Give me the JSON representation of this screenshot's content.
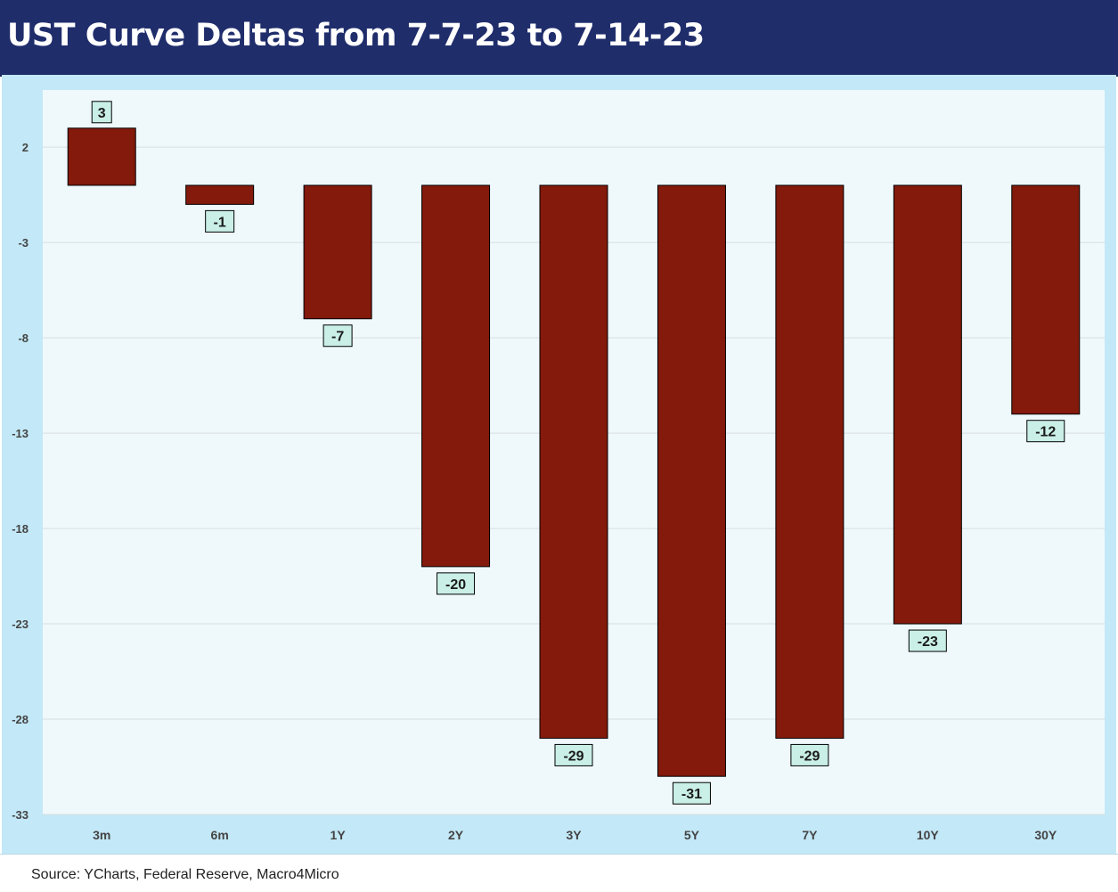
{
  "title": "UST Curve Deltas from 7-7-23 to 7-14-23",
  "source": "Source: YCharts, Federal Reserve, Macro4Micro",
  "colors": {
    "header_bg": "#1f2d6b",
    "frame_bg": "#c3e8f7",
    "plot_bg": "#eff9fc",
    "bar": "#831a0b",
    "label_bg": "#c9efe6"
  },
  "chart_data": {
    "type": "bar",
    "categories": [
      "3m",
      "6m",
      "1Y",
      "2Y",
      "3Y",
      "5Y",
      "7Y",
      "10Y",
      "30Y"
    ],
    "values": [
      3,
      -1,
      -7,
      -20,
      -29,
      -31,
      -29,
      -23,
      -12
    ],
    "yticks": [
      2,
      -3,
      -8,
      -13,
      -18,
      -23,
      -28,
      -33
    ],
    "ylim": [
      -33,
      5
    ],
    "grid": true,
    "legend": "none"
  }
}
